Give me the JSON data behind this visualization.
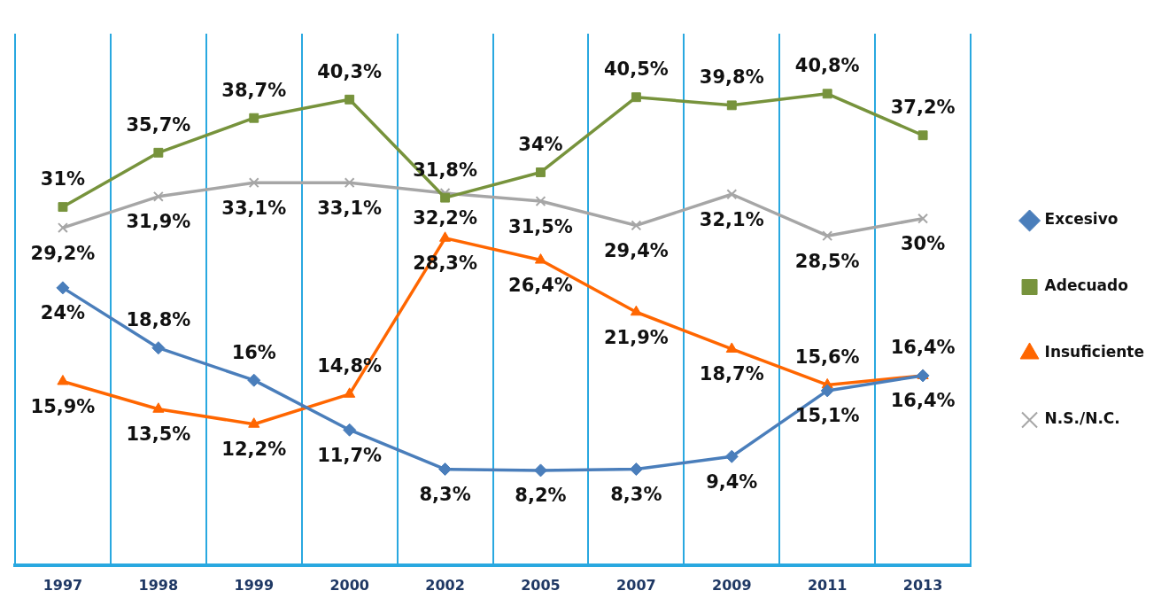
{
  "chart_data": {
    "type": "line",
    "categories": [
      "1997",
      "1998",
      "1999",
      "2000",
      "2002",
      "2005",
      "2007",
      "2009",
      "2011",
      "2013"
    ],
    "ylim": [
      0,
      46
    ],
    "grid": "x",
    "legend": "right",
    "series": [
      {
        "name": "Excesivo",
        "color": "#4a7ebb",
        "marker": "diamond",
        "values": [
          24,
          18.8,
          16,
          11.7,
          8.3,
          8.2,
          8.3,
          9.4,
          15.1,
          16.4
        ],
        "value_labels": [
          "24%",
          "18,8%",
          "16%",
          "11,7%",
          "8,3%",
          "8,2%",
          "8,3%",
          "9,4%",
          "15,1%",
          "16,4%"
        ]
      },
      {
        "name": "Adecuado",
        "color": "#77933c",
        "marker": "square",
        "values": [
          31,
          35.7,
          38.7,
          40.3,
          31.8,
          34,
          40.5,
          39.8,
          40.8,
          37.2
        ],
        "value_labels": [
          "31%",
          "35,7%",
          "38,7%",
          "40,3%",
          "31,8%",
          "34%",
          "40,5%",
          "39,8%",
          "40,8%",
          "37,2%"
        ]
      },
      {
        "name": "Insuficiente",
        "color": "#ff6600",
        "marker": "triangle",
        "values": [
          15.9,
          13.5,
          12.2,
          14.8,
          28.3,
          26.4,
          21.9,
          18.7,
          15.6,
          16.4
        ],
        "value_labels": [
          "15,9%",
          "13,5%",
          "12,2%",
          "14,8%",
          "28,3%",
          "26,4%",
          "21,9%",
          "18,7%",
          "15,6%",
          "16,4%"
        ]
      },
      {
        "name": "N.S./N.C.",
        "color": "#a6a6a6",
        "marker": "cross",
        "values": [
          29.2,
          31.9,
          33.1,
          33.1,
          32.2,
          31.5,
          29.4,
          32.1,
          28.5,
          30
        ],
        "value_labels": [
          "29,2%",
          "31,9%",
          "33,1%",
          "33,1%",
          "32,2%",
          "31,5%",
          "29,4%",
          "32,1%",
          "28,5%",
          "30%"
        ]
      }
    ]
  }
}
